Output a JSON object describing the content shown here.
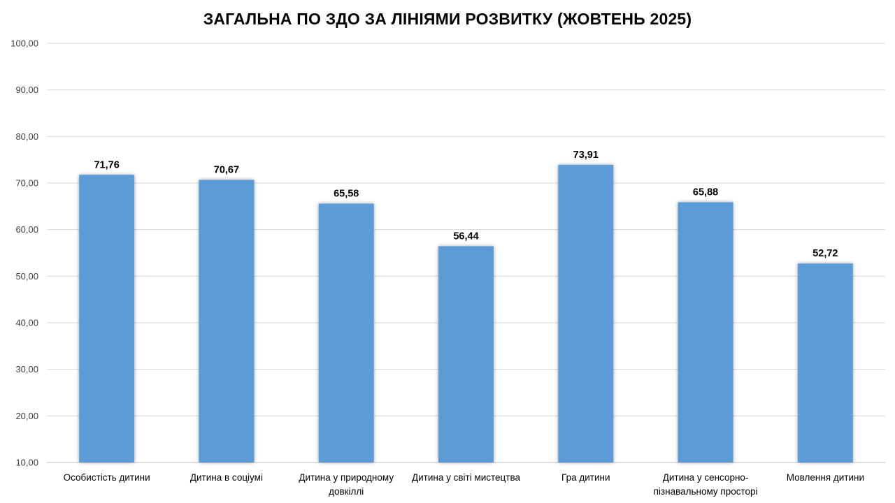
{
  "chart_data": {
    "type": "bar",
    "title": "ЗАГАЛЬНА ПО ЗДО ЗА ЛІНІЯМИ РОЗВИТКУ (ЖОВТЕНЬ 2025)",
    "xlabel": "",
    "ylabel": "",
    "ylim": [
      10,
      100
    ],
    "yticks": [
      "10,00",
      "20,00",
      "30,00",
      "40,00",
      "50,00",
      "60,00",
      "70,00",
      "80,00",
      "90,00",
      "100,00"
    ],
    "ytick_values": [
      10,
      20,
      30,
      40,
      50,
      60,
      70,
      80,
      90,
      100
    ],
    "grid": true,
    "legend": "none",
    "categories": [
      [
        "Особистість дитини"
      ],
      [
        "Дитина в соціумі"
      ],
      [
        "Дитина у природному",
        "довкіллі"
      ],
      [
        "Дитина у світі мистецтва"
      ],
      [
        "Гра дитини"
      ],
      [
        "Дитина у сенсорно-",
        "пізнавальному просторі"
      ],
      [
        "Мовлення дитини"
      ]
    ],
    "values": [
      71.76,
      70.67,
      65.58,
      56.44,
      73.91,
      65.88,
      52.72
    ],
    "value_labels": [
      "71,76",
      "70,67",
      "65,58",
      "56,44",
      "73,91",
      "65,88",
      "52,72"
    ],
    "bar_color": "#5b9bd5"
  }
}
